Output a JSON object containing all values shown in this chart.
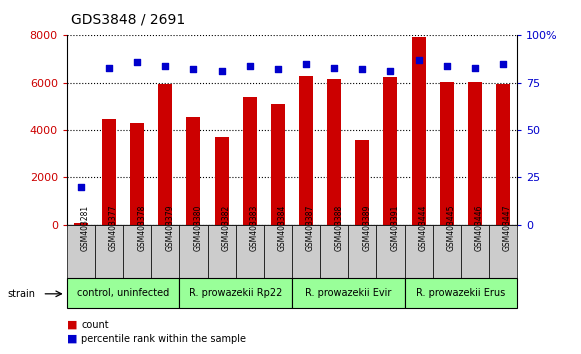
{
  "title": "GDS3848 / 2691",
  "samples": [
    "GSM403281",
    "GSM403377",
    "GSM403378",
    "GSM403379",
    "GSM403380",
    "GSM403382",
    "GSM403383",
    "GSM403384",
    "GSM403387",
    "GSM403388",
    "GSM403389",
    "GSM403391",
    "GSM403444",
    "GSM403445",
    "GSM403446",
    "GSM403447"
  ],
  "counts": [
    80,
    4450,
    4300,
    5950,
    4550,
    3700,
    5400,
    5100,
    6300,
    6150,
    3600,
    6250,
    7950,
    6050,
    6050,
    5950
  ],
  "percentiles": [
    20,
    83,
    86,
    84,
    82,
    81,
    84,
    82,
    85,
    83,
    82,
    81,
    87,
    84,
    83,
    85
  ],
  "bar_color": "#cc0000",
  "dot_color": "#0000cc",
  "groups": [
    {
      "label": "control, uninfected",
      "start": 0,
      "end": 4
    },
    {
      "label": "R. prowazekii Rp22",
      "start": 4,
      "end": 8
    },
    {
      "label": "R. prowazekii Evir",
      "start": 8,
      "end": 12
    },
    {
      "label": "R. prowazekii Erus",
      "start": 12,
      "end": 16
    }
  ],
  "strain_label": "strain",
  "ylim_left": [
    0,
    8000
  ],
  "ylim_right": [
    0,
    100
  ],
  "yticks_left": [
    0,
    2000,
    4000,
    6000,
    8000
  ],
  "yticks_right": [
    0,
    25,
    50,
    75,
    100
  ],
  "ytick_labels_right": [
    "0",
    "25",
    "50",
    "75",
    "100%"
  ],
  "legend_count_label": "count",
  "legend_pct_label": "percentile rank within the sample",
  "bg_color": "#ffffff",
  "tick_color_left": "#cc0000",
  "tick_color_right": "#0000cc",
  "sample_bg_color": "#cccccc",
  "group_bg_color": "#99ff99",
  "bar_width": 0.5
}
